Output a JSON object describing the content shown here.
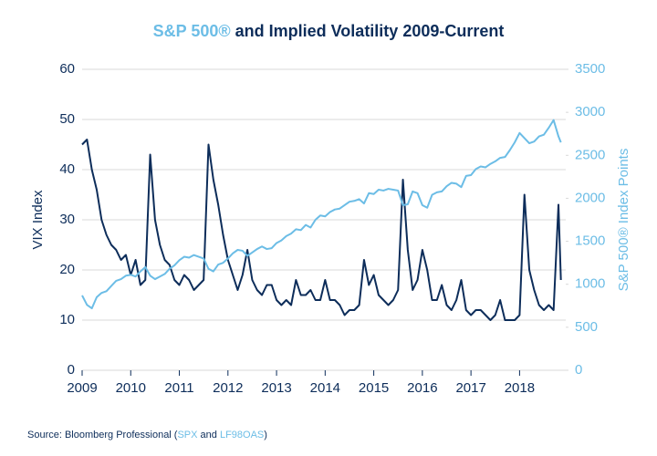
{
  "chart_data": {
    "type": "line",
    "title": [
      "S&P 500®",
      " and Implied Volatility 2009-Current"
    ],
    "ylabel": "VIX Index",
    "y2label": "S&P 500® Index Points",
    "source": [
      "Source: Bloomberg Professional (",
      "SPX",
      " and ",
      "LF98OAS",
      ")"
    ],
    "x": [
      2009.0,
      2009.1,
      2009.2,
      2009.3,
      2009.4,
      2009.5,
      2009.6,
      2009.7,
      2009.8,
      2009.9,
      2010.0,
      2010.1,
      2010.2,
      2010.3,
      2010.4,
      2010.5,
      2010.6,
      2010.7,
      2010.8,
      2010.9,
      2011.0,
      2011.1,
      2011.2,
      2011.3,
      2011.4,
      2011.5,
      2011.6,
      2011.7,
      2011.8,
      2011.9,
      2012.0,
      2012.1,
      2012.2,
      2012.3,
      2012.4,
      2012.5,
      2012.6,
      2012.7,
      2012.8,
      2012.9,
      2013.0,
      2013.1,
      2013.2,
      2013.3,
      2013.4,
      2013.5,
      2013.6,
      2013.7,
      2013.8,
      2013.9,
      2014.0,
      2014.1,
      2014.2,
      2014.3,
      2014.4,
      2014.5,
      2014.6,
      2014.7,
      2014.8,
      2014.9,
      2015.0,
      2015.1,
      2015.2,
      2015.3,
      2015.4,
      2015.5,
      2015.6,
      2015.7,
      2015.8,
      2015.9,
      2016.0,
      2016.1,
      2016.2,
      2016.3,
      2016.4,
      2016.5,
      2016.6,
      2016.7,
      2016.8,
      2016.9,
      2017.0,
      2017.1,
      2017.2,
      2017.3,
      2017.4,
      2017.5,
      2017.6,
      2017.7,
      2017.8,
      2017.9,
      2018.0,
      2018.1,
      2018.2,
      2018.3,
      2018.4,
      2018.5,
      2018.6,
      2018.7,
      2018.8,
      2018.85
    ],
    "series": [
      {
        "name": "VIX Index",
        "color": "#0d2d5a",
        "axis": "y",
        "values": [
          45,
          46,
          40,
          36,
          30,
          27,
          25,
          24,
          22,
          23,
          19,
          22,
          17,
          18,
          43,
          30,
          25,
          22,
          21,
          18,
          17,
          19,
          18,
          16,
          17,
          18,
          45,
          38,
          33,
          27,
          22,
          19,
          16,
          19,
          24,
          18,
          16,
          15,
          17,
          17,
          14,
          13,
          14,
          13,
          18,
          15,
          15,
          16,
          14,
          14,
          18,
          14,
          14,
          13,
          11,
          12,
          12,
          13,
          22,
          17,
          19,
          15,
          14,
          13,
          14,
          16,
          38,
          24,
          16,
          18,
          24,
          20,
          14,
          14,
          17,
          13,
          12,
          14,
          18,
          12,
          11,
          12,
          12,
          11,
          10,
          11,
          14,
          10,
          10,
          10,
          11,
          35,
          20,
          16,
          13,
          12,
          13,
          12,
          33,
          18
        ]
      },
      {
        "name": "S&P 500® Index Points",
        "color": "#6cbde6",
        "axis": "y2",
        "values": [
          870,
          760,
          720,
          850,
          900,
          920,
          980,
          1040,
          1060,
          1100,
          1110,
          1090,
          1150,
          1200,
          1100,
          1060,
          1090,
          1120,
          1180,
          1220,
          1280,
          1320,
          1310,
          1340,
          1320,
          1300,
          1180,
          1150,
          1230,
          1250,
          1300,
          1360,
          1400,
          1390,
          1330,
          1370,
          1410,
          1440,
          1410,
          1420,
          1480,
          1510,
          1560,
          1590,
          1640,
          1630,
          1690,
          1660,
          1750,
          1800,
          1790,
          1840,
          1870,
          1880,
          1920,
          1960,
          1970,
          1990,
          1940,
          2060,
          2050,
          2100,
          2090,
          2110,
          2100,
          2090,
          1920,
          1930,
          2080,
          2060,
          1920,
          1890,
          2040,
          2070,
          2080,
          2140,
          2180,
          2170,
          2130,
          2260,
          2270,
          2340,
          2370,
          2360,
          2400,
          2430,
          2470,
          2480,
          2560,
          2650,
          2760,
          2700,
          2640,
          2660,
          2720,
          2740,
          2820,
          2910,
          2720,
          2650
        ]
      }
    ],
    "xlim": [
      2009,
      2018.95
    ],
    "xticks": [
      2009,
      2010,
      2011,
      2012,
      2013,
      2014,
      2015,
      2016,
      2017,
      2018
    ],
    "ylim": [
      0,
      60
    ],
    "yticks": [
      0,
      10,
      20,
      30,
      40,
      50,
      60
    ],
    "y2lim": [
      0,
      3500
    ],
    "y2ticks": [
      0,
      500,
      1000,
      1500,
      2000,
      2500,
      3000,
      3500
    ],
    "grid": true
  }
}
